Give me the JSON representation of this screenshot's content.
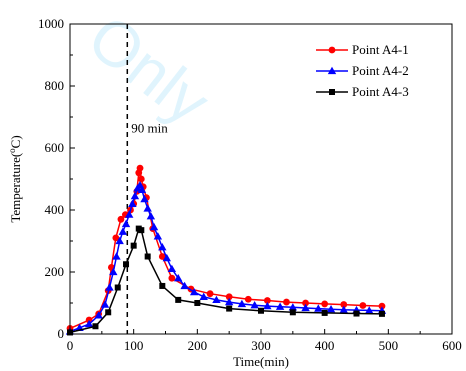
{
  "chart_data": {
    "type": "line",
    "xlabel": "Time(min)",
    "ylabel": "Temperature(°C)",
    "ylabel_base": "Temperature(",
    "ylabel_sup": "o",
    "ylabel_end": "C)",
    "xlim": [
      0,
      600
    ],
    "ylim": [
      0,
      1000
    ],
    "xticks": [
      0,
      100,
      200,
      300,
      400,
      500,
      600
    ],
    "yticks": [
      0,
      200,
      400,
      600,
      800,
      1000
    ],
    "legend_position": "top-right",
    "annotation": {
      "x": 90,
      "label": "90 min"
    },
    "series": [
      {
        "name": "Point A4-1",
        "color": "#ff0000",
        "marker": "circle",
        "x": [
          0,
          30,
          45,
          60,
          65,
          72,
          80,
          87,
          95,
          100,
          105,
          108,
          110,
          112,
          115,
          120,
          130,
          145,
          160,
          190,
          220,
          250,
          280,
          310,
          340,
          370,
          400,
          430,
          460,
          490
        ],
        "y": [
          18,
          45,
          65,
          140,
          215,
          310,
          370,
          385,
          400,
          420,
          460,
          520,
          535,
          500,
          475,
          440,
          340,
          250,
          180,
          145,
          130,
          120,
          112,
          108,
          103,
          100,
          97,
          95,
          92,
          90
        ]
      },
      {
        "name": "Point A4-2",
        "color": "#0000ff",
        "marker": "triangle",
        "x": [
          0,
          15,
          30,
          45,
          55,
          62,
          68,
          73,
          78,
          83,
          88,
          93,
          98,
          102,
          106,
          110,
          113,
          117,
          122,
          127,
          132,
          138,
          145,
          152,
          160,
          170,
          180,
          195,
          210,
          230,
          250,
          270,
          290,
          310,
          330,
          350,
          370,
          390,
          410,
          430,
          450,
          470,
          490
        ],
        "y": [
          8,
          20,
          32,
          60,
          95,
          150,
          200,
          250,
          300,
          330,
          355,
          385,
          420,
          445,
          470,
          480,
          465,
          435,
          405,
          380,
          345,
          315,
          280,
          245,
          210,
          180,
          155,
          135,
          120,
          110,
          103,
          97,
          93,
          90,
          88,
          86,
          84,
          82,
          80,
          78,
          77,
          76,
          75
        ]
      },
      {
        "name": "Point A4-3",
        "color": "#000000",
        "marker": "square",
        "x": [
          0,
          40,
          60,
          75,
          88,
          100,
          108,
          112,
          122,
          145,
          170,
          200,
          250,
          300,
          350,
          400,
          450,
          490
        ],
        "y": [
          5,
          25,
          70,
          150,
          225,
          285,
          340,
          335,
          250,
          155,
          110,
          100,
          82,
          75,
          70,
          68,
          66,
          65
        ]
      }
    ]
  }
}
